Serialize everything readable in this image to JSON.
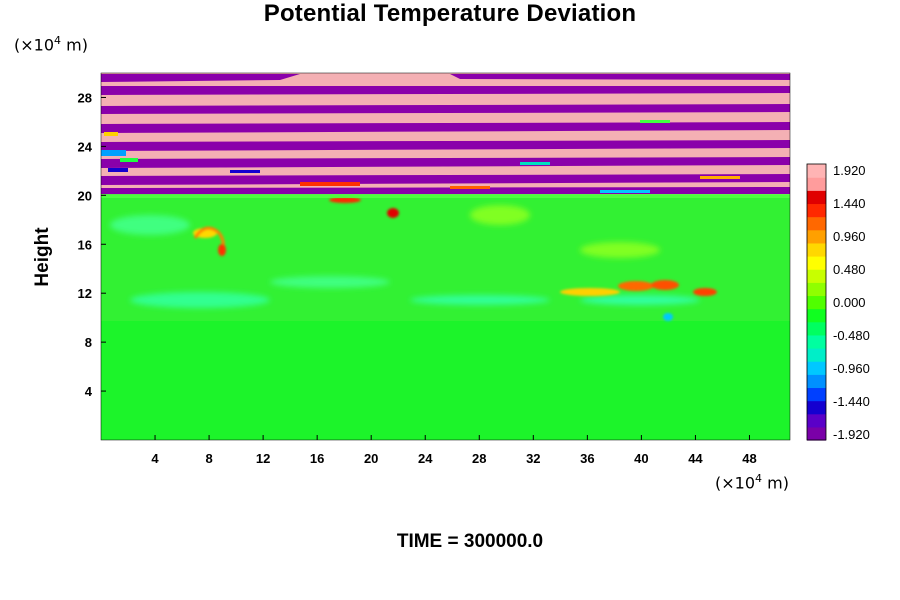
{
  "chart_data": {
    "type": "heatmap",
    "title": "Potential Temperature Deviation",
    "ylabel": "Height",
    "y_unit_prefix": "(×10",
    "y_unit_exp": "4",
    "y_unit_suffix": " m)",
    "x_unit_prefix": "(×10",
    "x_unit_exp": "4",
    "x_unit_suffix": " m)",
    "xlim": [
      0,
      51
    ],
    "ylim": [
      0,
      30
    ],
    "x_ticks": [
      "4",
      "8",
      "12",
      "16",
      "20",
      "24",
      "28",
      "32",
      "36",
      "40",
      "44",
      "48"
    ],
    "y_ticks": [
      "4",
      "8",
      "12",
      "16",
      "20",
      "24",
      "28"
    ],
    "colorbar": {
      "ticks": [
        "1.920",
        "1.440",
        "0.960",
        "0.480",
        "0.000",
        "-0.480",
        "-0.960",
        "-1.440",
        "-1.920"
      ],
      "range": [
        -1.92,
        1.92
      ],
      "colors": [
        "#7a00a8",
        "#5a00c8",
        "#1400d0",
        "#0040ff",
        "#0090ff",
        "#00c8ff",
        "#00eec8",
        "#00ffa0",
        "#00ff60",
        "#10ff20",
        "#50ff00",
        "#90ff00",
        "#c8ff00",
        "#ffff00",
        "#ffd800",
        "#ffa000",
        "#ff6800",
        "#ff2800",
        "#e00000",
        "#ff9c9c",
        "#ffb4b4"
      ]
    },
    "field_description_values": {
      "background_level": 0.02,
      "upper_band_levels": [
        1.92,
        -1.92
      ]
    },
    "footer": "TIME = 300000.0"
  }
}
